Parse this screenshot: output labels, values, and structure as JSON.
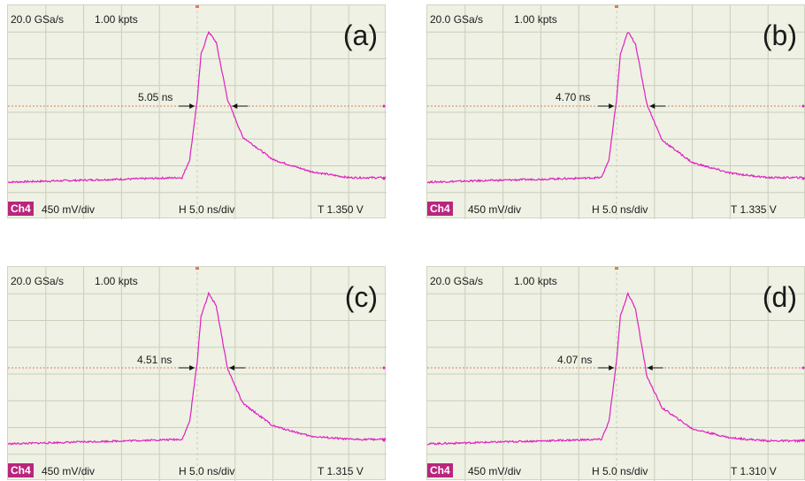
{
  "panels": [
    {
      "label": "(a)",
      "sample_rate": "20.0 GSa/s",
      "points": "1.00 kpts",
      "fwhm_label": "5.05 ns",
      "channel": "Ch4",
      "vdiv": "450 mV/div",
      "hdiv": "H 5.0 ns/div",
      "trigger": "T 1.350 V"
    },
    {
      "label": "(b)",
      "sample_rate": "20.0 GSa/s",
      "points": "1.00 kpts",
      "fwhm_label": "4.70 ns",
      "channel": "Ch4",
      "vdiv": "450 mV/div",
      "hdiv": "H 5.0 ns/div",
      "trigger": "T 1.335 V"
    },
    {
      "label": "(c)",
      "sample_rate": "20.0 GSa/s",
      "points": "1.00 kpts",
      "fwhm_label": "4.51 ns",
      "channel": "Ch4",
      "vdiv": "450 mV/div",
      "hdiv": "H 5.0 ns/div",
      "trigger": "T 1.315 V"
    },
    {
      "label": "(d)",
      "sample_rate": "20.0 GSa/s",
      "points": "1.00 kpts",
      "fwhm_label": "4.07 ns",
      "channel": "Ch4",
      "vdiv": "450 mV/div",
      "hdiv": "H 5.0 ns/div",
      "trigger": "T 1.310 V"
    }
  ],
  "colors": {
    "trace": "#e020c0",
    "screen": "#eef1e3",
    "grid": "#c9cfbb",
    "level": "#e07a5a",
    "channel_badge": "#b9267c"
  },
  "chart_data": [
    {
      "type": "line",
      "title": "(a)",
      "xlabel": "",
      "ylabel": "",
      "grid": true,
      "fwhm_ns": 5.05,
      "x_per_div_ns": 5.0,
      "y_per_div_mV": 450,
      "trigger_V": 1.35,
      "series": [
        {
          "x": [
            -25,
            -2,
            -1,
            0,
            0.5,
            1.5,
            2.5,
            4,
            6,
            10,
            15,
            20
          ],
          "y": [
            0,
            0.03,
            0.15,
            0.55,
            0.85,
            1.0,
            0.93,
            0.55,
            0.3,
            0.15,
            0.07,
            0.03
          ]
        }
      ]
    },
    {
      "type": "line",
      "title": "(b)",
      "xlabel": "",
      "ylabel": "",
      "grid": true,
      "fwhm_ns": 4.7,
      "x_per_div_ns": 5.0,
      "y_per_div_mV": 450,
      "trigger_V": 1.335,
      "series": [
        {
          "x": [
            -25,
            -2,
            -1,
            0,
            0.5,
            1.5,
            2.5,
            4,
            6,
            10,
            15,
            20
          ],
          "y": [
            0,
            0.03,
            0.15,
            0.55,
            0.85,
            1.0,
            0.92,
            0.52,
            0.28,
            0.13,
            0.06,
            0.03
          ]
        }
      ]
    },
    {
      "type": "line",
      "title": "(c)",
      "xlabel": "",
      "ylabel": "",
      "grid": true,
      "fwhm_ns": 4.51,
      "x_per_div_ns": 5.0,
      "y_per_div_mV": 450,
      "trigger_V": 1.315,
      "series": [
        {
          "x": [
            -25,
            -2,
            -1,
            0,
            0.5,
            1.5,
            2.5,
            4,
            6,
            10,
            15,
            20
          ],
          "y": [
            0,
            0.03,
            0.15,
            0.55,
            0.85,
            1.0,
            0.92,
            0.5,
            0.27,
            0.12,
            0.05,
            0.03
          ]
        }
      ]
    },
    {
      "type": "line",
      "title": "(d)",
      "xlabel": "",
      "ylabel": "",
      "grid": true,
      "fwhm_ns": 4.07,
      "x_per_div_ns": 5.0,
      "y_per_div_mV": 450,
      "trigger_V": 1.31,
      "series": [
        {
          "x": [
            -25,
            -2,
            -1,
            0,
            0.5,
            1.5,
            2.5,
            4,
            6,
            10,
            15,
            20
          ],
          "y": [
            0,
            0.03,
            0.15,
            0.55,
            0.85,
            1.0,
            0.9,
            0.45,
            0.24,
            0.1,
            0.04,
            0.02
          ]
        }
      ]
    }
  ]
}
